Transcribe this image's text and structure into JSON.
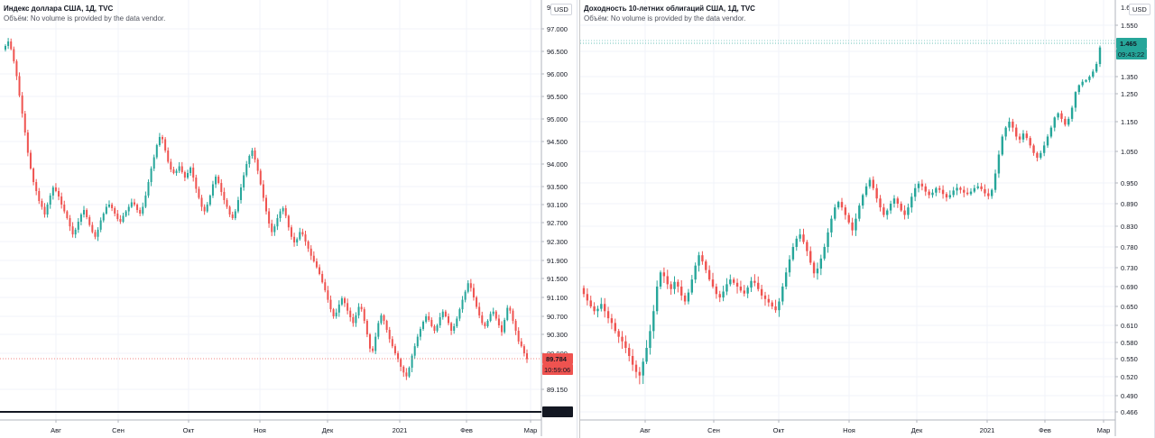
{
  "chart_data": [
    {
      "type": "candlestick",
      "title": "Индекс доллара США, 1Д, TVC",
      "volume_note": "Объём: No volume is provided by the data vendor.",
      "currency": "USD",
      "y_ticks": [
        "97.000",
        "96.500",
        "96.000",
        "95.500",
        "95.000",
        "94.500",
        "94.000",
        "93.500",
        "93.100",
        "92.700",
        "92.300",
        "91.900",
        "91.500",
        "91.100",
        "90.700",
        "90.300",
        "89.900",
        "89.150",
        "88.685"
      ],
      "top_tick_partial": "9",
      "ylim": [
        88.5,
        97.3
      ],
      "x_ticks": [
        "Авг",
        "Сен",
        "Окт",
        "Ноя",
        "Дек",
        "2021",
        "Фев",
        "Мар"
      ],
      "current_price": "89.784",
      "countdown": "10:59:06",
      "marker_line_value": "88.685",
      "colors": {
        "up": "#26a69a",
        "down": "#ef5350",
        "price_label": "#ef5350",
        "marker_label": "#131722"
      },
      "closes": [
        96.62,
        96.72,
        96.55,
        96.28,
        95.95,
        95.52,
        95.12,
        94.7,
        94.25,
        93.9,
        93.6,
        93.4,
        93.18,
        93.05,
        92.88,
        93.1,
        93.3,
        93.48,
        93.4,
        93.28,
        93.1,
        92.95,
        92.8,
        92.62,
        92.45,
        92.55,
        92.72,
        92.88,
        92.98,
        92.82,
        92.65,
        92.5,
        92.4,
        92.55,
        92.75,
        92.9,
        93.05,
        93.1,
        93.02,
        92.9,
        92.78,
        92.72,
        92.85,
        92.95,
        93.05,
        93.15,
        93.1,
        92.98,
        92.9,
        93.05,
        93.3,
        93.6,
        93.9,
        94.15,
        94.42,
        94.6,
        94.55,
        94.3,
        94.05,
        93.88,
        93.8,
        93.85,
        93.95,
        93.82,
        93.7,
        93.8,
        93.92,
        93.7,
        93.45,
        93.25,
        93.05,
        92.95,
        93.1,
        93.3,
        93.55,
        93.72,
        93.58,
        93.38,
        93.2,
        93.05,
        92.88,
        92.8,
        92.95,
        93.2,
        93.48,
        93.75,
        94.0,
        94.18,
        94.3,
        94.1,
        93.85,
        93.55,
        93.25,
        92.95,
        92.68,
        92.5,
        92.62,
        92.8,
        92.95,
        93.02,
        92.85,
        92.6,
        92.4,
        92.28,
        92.35,
        92.5,
        92.45,
        92.3,
        92.15,
        92.0,
        91.88,
        91.75,
        91.6,
        91.42,
        91.25,
        91.05,
        90.85,
        90.7,
        90.78,
        90.95,
        91.08,
        90.98,
        90.82,
        90.68,
        90.55,
        90.72,
        90.9,
        90.85,
        90.6,
        90.3,
        90.0,
        89.95,
        90.25,
        90.55,
        90.72,
        90.6,
        90.4,
        90.2,
        90.05,
        89.9,
        89.78,
        89.62,
        89.5,
        89.42,
        89.6,
        89.85,
        90.05,
        90.25,
        90.42,
        90.58,
        90.7,
        90.62,
        90.48,
        90.38,
        90.5,
        90.68,
        90.8,
        90.7,
        90.55,
        90.38,
        90.48,
        90.65,
        90.85,
        91.05,
        91.22,
        91.4,
        91.3,
        91.1,
        90.9,
        90.72,
        90.55,
        90.48,
        90.6,
        90.75,
        90.8,
        90.65,
        90.5,
        90.35,
        90.62,
        90.88,
        90.82,
        90.6,
        90.38,
        90.15,
        90.05,
        89.9,
        89.78
      ]
    },
    {
      "type": "candlestick",
      "title": "Доходность 10-летних облигаций США, 1Д, TVC",
      "volume_note": "Объём: No volume is provided by the data vendor.",
      "currency": "USD",
      "y_ticks": [
        "1.550",
        "1.450",
        "1.350",
        "1.250",
        "1.150",
        "1.050",
        "0.950",
        "0.890",
        "0.830",
        "0.780",
        "0.730",
        "0.690",
        "0.650",
        "0.610",
        "0.580",
        "0.550",
        "0.520",
        "0.490",
        "0.466"
      ],
      "top_tick_partial": "1.650",
      "x_ticks": [
        "Авг",
        "Сен",
        "Окт",
        "Ноя",
        "Дек",
        "2021",
        "Фев",
        "Мар"
      ],
      "current_price": "1.465",
      "countdown": "09:43:22",
      "colors": {
        "up": "#26a69a",
        "down": "#ef5350",
        "price_label": "#26a69a"
      },
      "closes": [
        0.675,
        0.662,
        0.65,
        0.64,
        0.645,
        0.655,
        0.64,
        0.625,
        0.615,
        0.6,
        0.59,
        0.582,
        0.57,
        0.555,
        0.54,
        0.528,
        0.522,
        0.545,
        0.57,
        0.6,
        0.64,
        0.69,
        0.72,
        0.712,
        0.695,
        0.685,
        0.7,
        0.69,
        0.672,
        0.66,
        0.678,
        0.705,
        0.735,
        0.76,
        0.745,
        0.725,
        0.705,
        0.69,
        0.675,
        0.668,
        0.68,
        0.695,
        0.705,
        0.698,
        0.69,
        0.682,
        0.676,
        0.688,
        0.702,
        0.698,
        0.685,
        0.672,
        0.665,
        0.658,
        0.65,
        0.642,
        0.66,
        0.69,
        0.72,
        0.75,
        0.78,
        0.8,
        0.81,
        0.792,
        0.77,
        0.742,
        0.718,
        0.728,
        0.752,
        0.78,
        0.815,
        0.85,
        0.88,
        0.895,
        0.88,
        0.86,
        0.84,
        0.82,
        0.85,
        0.885,
        0.915,
        0.94,
        0.96,
        0.935,
        0.905,
        0.88,
        0.86,
        0.872,
        0.89,
        0.905,
        0.89,
        0.872,
        0.86,
        0.88,
        0.91,
        0.935,
        0.948,
        0.94,
        0.925,
        0.915,
        0.922,
        0.935,
        0.93,
        0.918,
        0.908,
        0.915,
        0.928,
        0.936,
        0.93,
        0.922,
        0.918,
        0.925,
        0.935,
        0.94,
        0.932,
        0.92,
        0.912,
        0.93,
        0.98,
        1.04,
        1.1,
        1.13,
        1.15,
        1.13,
        1.1,
        1.09,
        1.11,
        1.095,
        1.07,
        1.045,
        1.03,
        1.045,
        1.07,
        1.1,
        1.13,
        1.165,
        1.18,
        1.16,
        1.14,
        1.16,
        1.2,
        1.26,
        1.3,
        1.32,
        1.33,
        1.35,
        1.37,
        1.4,
        1.465
      ]
    }
  ]
}
